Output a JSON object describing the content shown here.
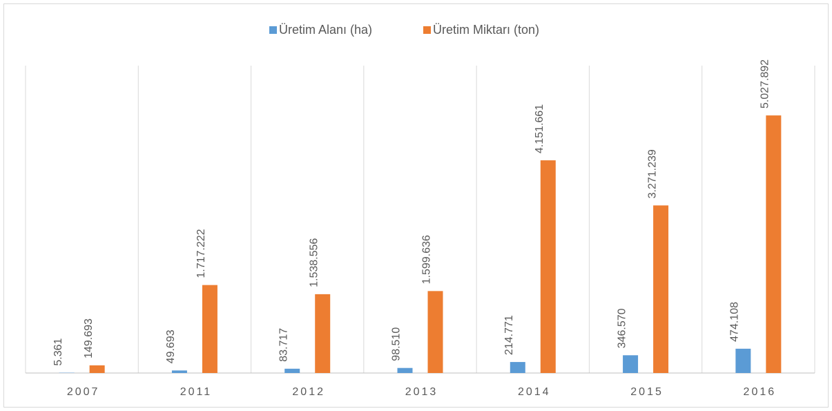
{
  "chart_data": {
    "type": "bar",
    "categories": [
      "2007",
      "2011",
      "2012",
      "2013",
      "2014",
      "2015",
      "2016"
    ],
    "series": [
      {
        "name": "Üretim Alanı (ha)",
        "color": "#5b9bd5",
        "values": [
          5361,
          49693,
          83717,
          98510,
          214771,
          346570,
          474108
        ],
        "value_labels": [
          "5.361",
          "49.693",
          "83.717",
          "98.510",
          "214.771",
          "346.570",
          "474.108"
        ]
      },
      {
        "name": "Üretim Miktarı (ton)",
        "color": "#ed7d31",
        "values": [
          149693,
          1717222,
          1538556,
          1599636,
          4151661,
          3271239,
          5027892
        ],
        "value_labels": [
          "149.693",
          "1.717.222",
          "1.538.556",
          "1.599.636",
          "4.151.661",
          "3.271.239",
          "5.027.892"
        ]
      }
    ],
    "ylim": [
      0,
      6000000
    ]
  }
}
